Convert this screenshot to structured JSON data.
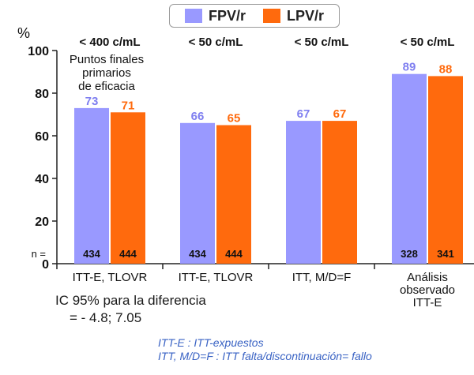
{
  "chart_data": {
    "type": "bar",
    "ylabel": "%",
    "ylim": [
      0,
      100
    ],
    "yticks": [
      0,
      20,
      40,
      60,
      80,
      100
    ],
    "legend_position": "top-center",
    "series": [
      {
        "name": "FPV/r",
        "color": "#9999ff",
        "label_color": "#7f7ff0",
        "values": [
          73,
          66,
          67,
          89
        ],
        "n": [
          "434",
          "434",
          "",
          "328"
        ]
      },
      {
        "name": "LPV/r",
        "color": "#ff6a0d",
        "label_color": "#ff6a0d",
        "values": [
          71,
          65,
          67,
          88
        ],
        "n": [
          "444",
          "444",
          "",
          "341"
        ]
      }
    ],
    "groups": [
      {
        "threshold": "< 400 c/mL",
        "category": [
          "ITT-E, TLOVR"
        ]
      },
      {
        "threshold": "< 50 c/mL",
        "category": [
          "ITT-E, TLOVR"
        ]
      },
      {
        "threshold": "< 50 c/mL",
        "category": [
          "ITT, M/D=F"
        ]
      },
      {
        "threshold": "< 50 c/mL",
        "category": [
          "Análisis",
          "observado",
          "ITT-E"
        ]
      }
    ],
    "annotation": [
      "Puntos finales",
      "primarios",
      "de eficacia"
    ],
    "n_prefix": "n ="
  },
  "ci_text": {
    "line1": "IC 95% para la diferencia",
    "line2": "= - 4.8; 7.05"
  },
  "footnotes": {
    "line1": "ITT-E : ITT-expuestos",
    "line2": "ITT, M/D=F : ITT falta/discontinuación= fallo"
  }
}
